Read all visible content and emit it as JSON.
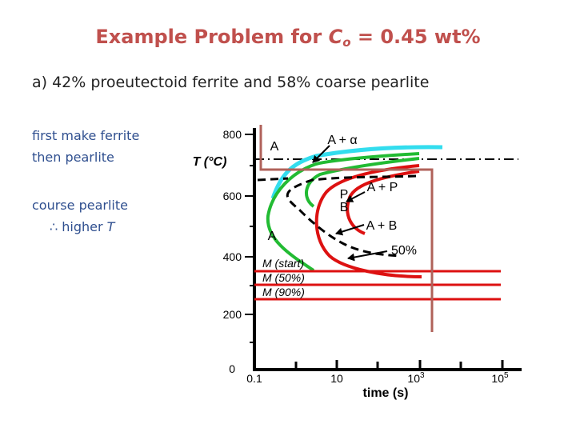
{
  "slide": {
    "title_prefix": "Example Problem for ",
    "title_var": "C",
    "title_sub": "o",
    "title_suffix": " = 0.45 wt%",
    "part_a": "a)   42% proeutectoid ferrite and 58% coarse pearlite",
    "note1_line1": "first make ferrite",
    "note1_line2": "then pearlite",
    "note2_line1": "course pearlite",
    "note2_symbol": "∴",
    "note2_text": " higher ",
    "note2_var": "T"
  },
  "diagram": {
    "y_axis_label": "T (°C)",
    "y_ticks": [
      "800",
      "600",
      "400",
      "200",
      "0"
    ],
    "x_ticks": [
      "0.1",
      "10",
      "10",
      "10"
    ],
    "x_tick_exponents": [
      "",
      "",
      "3",
      "5"
    ],
    "x_axis_label": "time (s)",
    "regions": {
      "a_top": "A",
      "a_alpha": "A + α",
      "a_p": "A + P",
      "p": "P",
      "b": "B",
      "a_b": "A + B",
      "a_low": "A",
      "fifty": "50%",
      "m_start": "M (start)",
      "m_50": "M (50%)",
      "m_90": "M (90%)"
    },
    "colors": {
      "cyan": "#33ddee",
      "green": "#22bb33",
      "red": "#dd1111",
      "path": "#b0625a"
    }
  }
}
